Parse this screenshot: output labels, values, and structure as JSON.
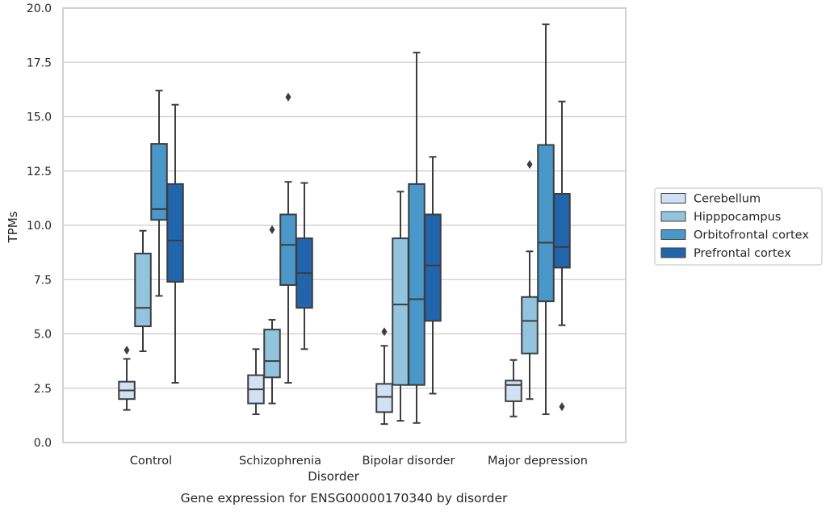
{
  "chart_data": {
    "type": "boxplot",
    "title": "",
    "caption": "Gene expression for ENSG00000170340 by disorder",
    "xlabel": "Disorder",
    "ylabel": "TPMs",
    "ylim": [
      0,
      20
    ],
    "y_ticks": [
      "0.0",
      "2.5",
      "5.0",
      "7.5",
      "10.0",
      "12.5",
      "15.0",
      "17.5",
      "20.0"
    ],
    "categories": [
      "Control",
      "Schizophrenia",
      "Bipolar disorder",
      "Major depression"
    ],
    "grid": "horizontal",
    "legend_position": "right",
    "series": [
      {
        "name": "Cerebellum",
        "color": "#cfe1f2",
        "boxes": [
          {
            "whisker_low": 1.5,
            "q1": 2.0,
            "median": 2.4,
            "q3": 2.8,
            "whisker_high": 3.85,
            "outliers": [
              4.25
            ]
          },
          {
            "whisker_low": 1.3,
            "q1": 1.8,
            "median": 2.45,
            "q3": 3.1,
            "whisker_high": 4.3,
            "outliers": []
          },
          {
            "whisker_low": 0.85,
            "q1": 1.4,
            "median": 2.1,
            "q3": 2.7,
            "whisker_high": 4.45,
            "outliers": [
              5.1
            ]
          },
          {
            "whisker_low": 1.2,
            "q1": 1.9,
            "median": 2.65,
            "q3": 2.85,
            "whisker_high": 3.8,
            "outliers": []
          }
        ]
      },
      {
        "name": "Hipppocampus",
        "color": "#93c4de",
        "boxes": [
          {
            "whisker_low": 4.2,
            "q1": 5.35,
            "median": 6.2,
            "q3": 8.7,
            "whisker_high": 9.75,
            "outliers": []
          },
          {
            "whisker_low": 1.8,
            "q1": 3.0,
            "median": 3.75,
            "q3": 5.2,
            "whisker_high": 5.65,
            "outliers": [
              9.8
            ]
          },
          {
            "whisker_low": 1.0,
            "q1": 2.65,
            "median": 6.35,
            "q3": 9.4,
            "whisker_high": 11.55,
            "outliers": []
          },
          {
            "whisker_low": 2.0,
            "q1": 4.1,
            "median": 5.6,
            "q3": 6.7,
            "whisker_high": 8.8,
            "outliers": [
              12.8
            ]
          }
        ]
      },
      {
        "name": "Orbitofrontal cortex",
        "color": "#4a98c9",
        "boxes": [
          {
            "whisker_low": 6.75,
            "q1": 10.25,
            "median": 10.75,
            "q3": 13.75,
            "whisker_high": 16.2,
            "outliers": []
          },
          {
            "whisker_low": 2.75,
            "q1": 7.25,
            "median": 9.1,
            "q3": 10.5,
            "whisker_high": 12.0,
            "outliers": [
              15.9
            ]
          },
          {
            "whisker_low": 0.9,
            "q1": 2.65,
            "median": 6.6,
            "q3": 11.9,
            "whisker_high": 17.95,
            "outliers": []
          },
          {
            "whisker_low": 1.3,
            "q1": 6.5,
            "median": 9.2,
            "q3": 13.7,
            "whisker_high": 19.25,
            "outliers": []
          }
        ]
      },
      {
        "name": "Prefrontal cortex",
        "color": "#2166ac",
        "boxes": [
          {
            "whisker_low": 2.75,
            "q1": 7.4,
            "median": 9.3,
            "q3": 11.9,
            "whisker_high": 15.55,
            "outliers": []
          },
          {
            "whisker_low": 4.3,
            "q1": 6.2,
            "median": 7.8,
            "q3": 9.4,
            "whisker_high": 11.95,
            "outliers": []
          },
          {
            "whisker_low": 2.25,
            "q1": 5.6,
            "median": 8.15,
            "q3": 10.5,
            "whisker_high": 13.15,
            "outliers": []
          },
          {
            "whisker_low": 5.4,
            "q1": 8.05,
            "median": 9.0,
            "q3": 11.45,
            "whisker_high": 15.7,
            "outliers": [
              1.65
            ]
          }
        ]
      }
    ]
  }
}
